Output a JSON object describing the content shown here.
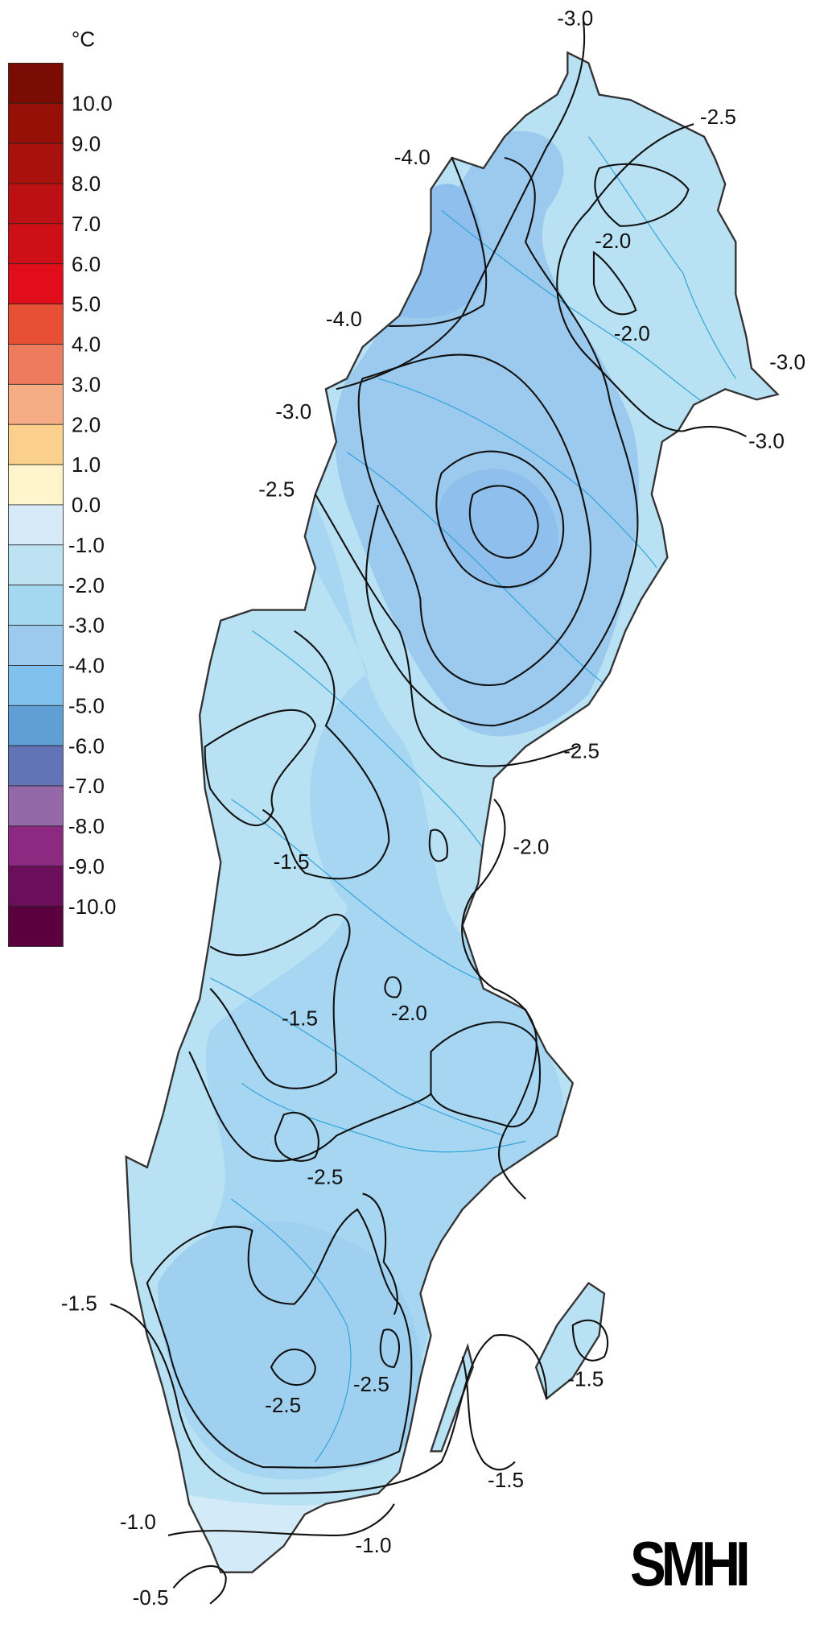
{
  "legend": {
    "unit": "°C",
    "colors": [
      "#7a0c05",
      "#961007",
      "#a8110d",
      "#bd1014",
      "#cf0f18",
      "#e20d1b",
      "#e75035",
      "#ee7b5e",
      "#f5ad86",
      "#fbd08c",
      "#fff4cc",
      "#d6ebf7",
      "#bde3f3",
      "#a4d8f0",
      "#9ccaee",
      "#80c1ee",
      "#5f9fd6",
      "#6274b6",
      "#9468a6",
      "#8c2a82",
      "#6b0f5b",
      "#5a003f"
    ],
    "labels": [
      "10.0",
      "9.0",
      "8.0",
      "7.0",
      "6.0",
      "5.0",
      "4.0",
      "3.0",
      "2.0",
      "1.0",
      "0.0",
      "-1.0",
      "-2.0",
      "-3.0",
      "-4.0",
      "-5.0",
      "-6.0",
      "-7.0",
      "-8.0",
      "-9.0",
      "-10.0"
    ]
  },
  "map": {
    "region": "Sweden",
    "land_color": "#b9e1f4",
    "mid_color": "#a6d6f1",
    "dark_color": "#94c4ee",
    "darkest_color": "#84b8e8",
    "water_color": "#2fa3da"
  },
  "contours": {
    "labels": [
      "-3.0",
      "-2.5",
      "-4.0",
      "-2.0",
      "-2.0",
      "-4.0",
      "-3.0",
      "-3.0",
      "-3.0",
      "-2.5",
      "-2.5",
      "-2.0",
      "-1.5",
      "-1.5",
      "-2.0",
      "-2.5",
      "-1.5",
      "-1.5",
      "-2.5",
      "-2.5",
      "-1.5",
      "-1.0",
      "-1.0",
      "-0.5"
    ]
  },
  "logo": {
    "text": "SMHI"
  }
}
